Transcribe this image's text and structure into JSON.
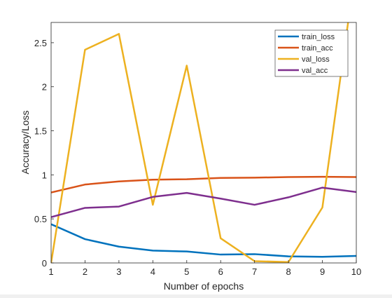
{
  "chart_data": {
    "type": "line",
    "title": "",
    "xlabel": "Number of epochs",
    "ylabel": "Accuracy/Loss",
    "xlim": [
      1,
      10
    ],
    "ylim": [
      0,
      2.73
    ],
    "x_ticks": [
      "1",
      "2",
      "3",
      "4",
      "5",
      "6",
      "7",
      "8",
      "9",
      "10"
    ],
    "y_ticks": [
      "0",
      "0.5",
      "1",
      "1.5",
      "2",
      "2.5"
    ],
    "grid": false,
    "legend_position": "top-right",
    "x": [
      1,
      2,
      3,
      4,
      5,
      6,
      7,
      8,
      9,
      10
    ],
    "series": [
      {
        "name": "train_loss",
        "color": "#0072BD",
        "values": [
          0.44,
          0.27,
          0.185,
          0.14,
          0.13,
          0.095,
          0.1,
          0.075,
          0.07,
          0.08
        ]
      },
      {
        "name": "train_acc",
        "color": "#D95319",
        "values": [
          0.8,
          0.89,
          0.925,
          0.945,
          0.95,
          0.965,
          0.968,
          0.975,
          0.978,
          0.975
        ]
      },
      {
        "name": "val_loss",
        "color": "#EDB120",
        "values": [
          0.0,
          2.42,
          2.6,
          0.66,
          2.24,
          0.28,
          0.02,
          0.01,
          0.63,
          3.4
        ]
      },
      {
        "name": "val_acc",
        "color": "#7E2F8E",
        "values": [
          0.52,
          0.625,
          0.64,
          0.75,
          0.795,
          0.73,
          0.66,
          0.745,
          0.855,
          0.805
        ]
      }
    ]
  }
}
